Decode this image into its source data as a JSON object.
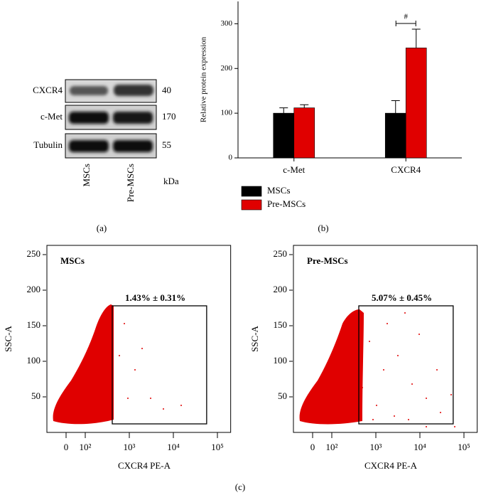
{
  "western_blot": {
    "rows": [
      "CXCR4",
      "c-Met",
      "Tubulin"
    ],
    "kda": [
      "40",
      "170",
      "55"
    ],
    "lanes": [
      "MSCs",
      "Pre-MSCs"
    ],
    "unit": "kDa",
    "caption": "(a)"
  },
  "chart_data": [
    {
      "type": "bar",
      "ylabel": "Relative protein expression",
      "categories": [
        "c-Met",
        "CXCR4"
      ],
      "series": [
        {
          "name": "MSCs",
          "color": "#000000",
          "values": [
            100,
            100
          ],
          "errors": [
            12,
            28
          ]
        },
        {
          "name": "Pre-MSCs",
          "color": "#e00000",
          "values": [
            112,
            246
          ],
          "errors": [
            7,
            42
          ]
        }
      ],
      "ylim": [
        0,
        350
      ],
      "yticks": [
        0,
        100,
        200,
        300
      ],
      "annotation": "#",
      "caption": "(b)",
      "legend": "bottom"
    },
    {
      "type": "flow",
      "title": "MSCs",
      "gate_label": "1.43% ± 0.31%",
      "xlabel": "CXCR4 PE-A",
      "ylabel": "SSC-A",
      "xlim": [
        -100,
        200000
      ],
      "ylim": [
        0,
        263
      ],
      "yticks": [
        50,
        100,
        150,
        200,
        250
      ],
      "xticks": [
        {
          "value": 0,
          "label": "0"
        },
        {
          "value": 100,
          "label": "10²"
        },
        {
          "value": 1000,
          "label": "10³"
        },
        {
          "value": 10000,
          "label": "10⁴"
        },
        {
          "value": 100000,
          "label": "10⁵"
        }
      ],
      "gate": {
        "x": [
          410,
          57000
        ],
        "y": [
          12,
          178
        ]
      },
      "color": "#e00000"
    },
    {
      "type": "flow",
      "title": "Pre-MSCs",
      "gate_label": "5.07% ± 0.45%",
      "xlabel": "CXCR4 PE-A",
      "ylabel": "SSC-A",
      "xlim": [
        -100,
        200000
      ],
      "ylim": [
        0,
        263
      ],
      "yticks": [
        50,
        100,
        150,
        200,
        250
      ],
      "xticks": [
        {
          "value": 0,
          "label": "0"
        },
        {
          "value": 100,
          "label": "10²"
        },
        {
          "value": 1000,
          "label": "10³"
        },
        {
          "value": 10000,
          "label": "10⁴"
        },
        {
          "value": 100000,
          "label": "10⁵"
        }
      ],
      "gate": {
        "x": [
          410,
          57000
        ],
        "y": [
          12,
          178
        ]
      },
      "color": "#e00000"
    }
  ],
  "figure_caption": "(c)"
}
